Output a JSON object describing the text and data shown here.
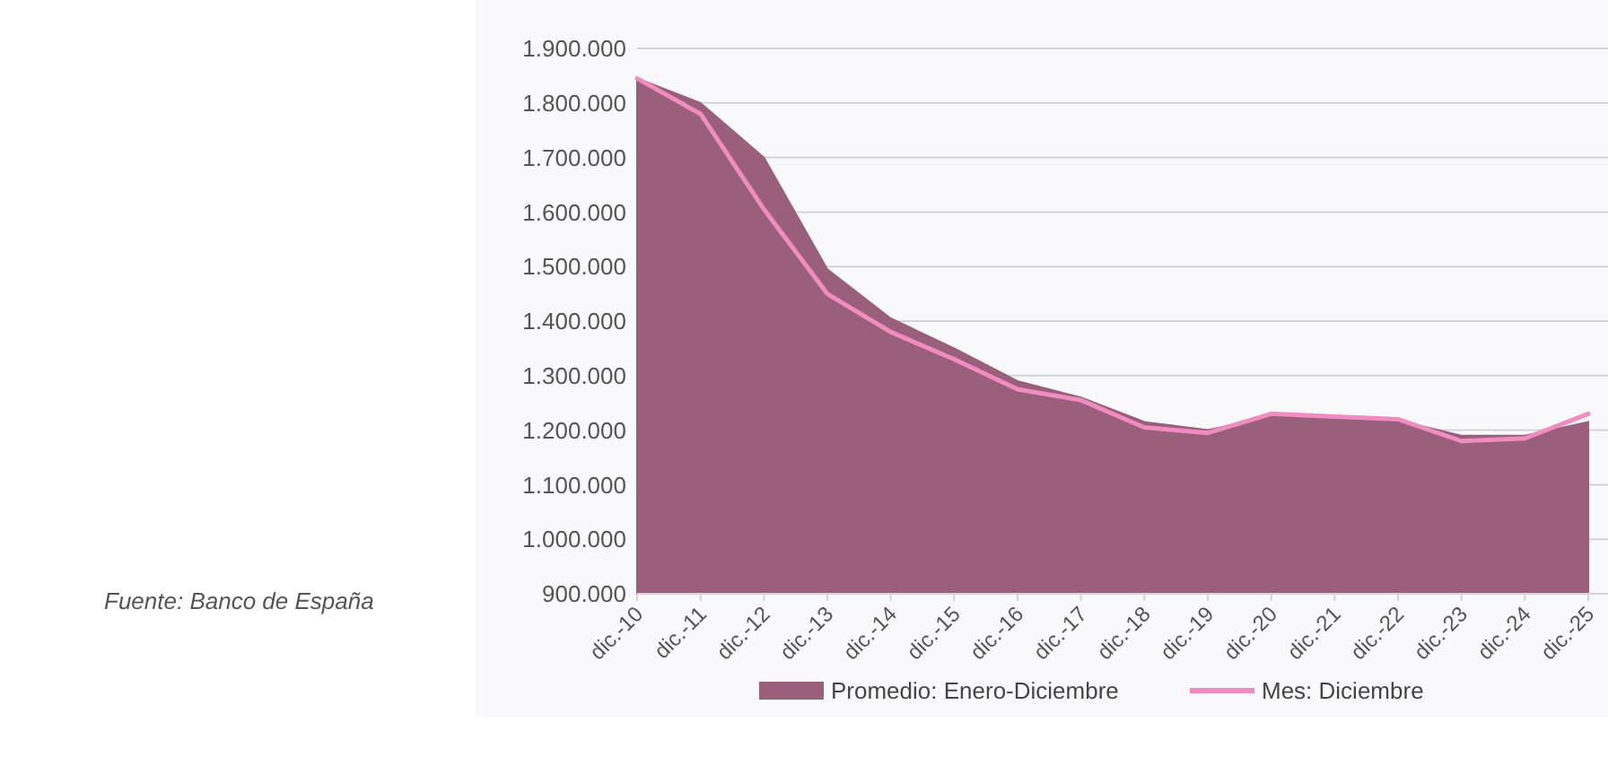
{
  "chart_data": {
    "type": "area",
    "categories": [
      "dic.-10",
      "dic.-11",
      "dic.-12",
      "dic.-13",
      "dic.-14",
      "dic.-15",
      "dic.-16",
      "dic.-17",
      "dic.-18",
      "dic.-19",
      "dic.-20",
      "dic.-21",
      "dic.-22",
      "dic.-23",
      "dic.-24",
      "dic.-25"
    ],
    "series": [
      {
        "name": "Promedio: Enero-Diciembre",
        "color": "#995f7b",
        "values": [
          1845000,
          1800000,
          1700000,
          1495000,
          1405000,
          1350000,
          1290000,
          1260000,
          1215000,
          1200000,
          1225000,
          1222000,
          1218000,
          1190000,
          1190000,
          1215000
        ]
      },
      {
        "name": "Mes: Diciembre",
        "type": "line",
        "color": "#f08cc0",
        "values": [
          1845000,
          1780000,
          1605000,
          1450000,
          1380000,
          1330000,
          1275000,
          1255000,
          1205000,
          1195000,
          1230000,
          1225000,
          1220000,
          1180000,
          1185000,
          1230000
        ]
      }
    ],
    "ylim": [
      900000,
      1900000
    ],
    "yticks": [
      {
        "value": 900000,
        "label": "900.000"
      },
      {
        "value": 1000000,
        "label": "1.000.000"
      },
      {
        "value": 1100000,
        "label": "1.100.000"
      },
      {
        "value": 1200000,
        "label": "1.200.000"
      },
      {
        "value": 1300000,
        "label": "1.300.000"
      },
      {
        "value": 1400000,
        "label": "1.400.000"
      },
      {
        "value": 1500000,
        "label": "1.500.000"
      },
      {
        "value": 1600000,
        "label": "1.600.000"
      },
      {
        "value": 1700000,
        "label": "1.700.000"
      },
      {
        "value": 1800000,
        "label": "1.800.000"
      },
      {
        "value": 1900000,
        "label": "1.900.000"
      }
    ],
    "grid": "y",
    "legend": "bottom",
    "annotations": [
      "Fuente: Banco de España"
    ]
  }
}
